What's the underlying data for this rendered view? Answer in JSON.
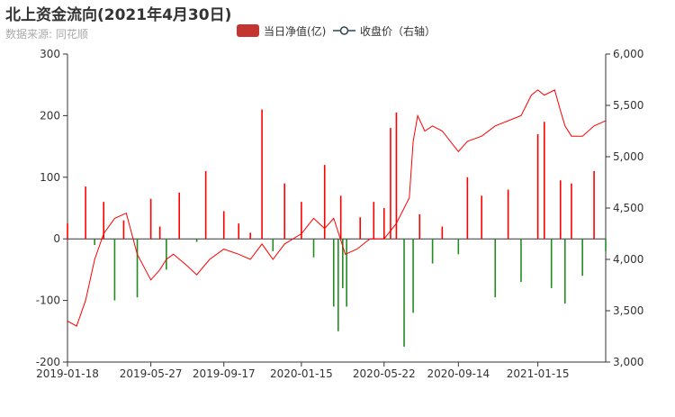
{
  "chart_data": {
    "type": "bar+line",
    "title": "北上资金流向(2021年4月30日)",
    "subtitle": "数据来源: 同花顺",
    "legend": [
      {
        "label": "当日净值(亿)",
        "color": "#c23531",
        "marker": "rect"
      },
      {
        "label": "收盘价（右轴）",
        "color": "#2f4554",
        "marker": "line-circle"
      }
    ],
    "legend_position": "top-center",
    "x_tick_labels": [
      "2019-01-18",
      "2019-05-27",
      "2019-09-17",
      "2020-01-15",
      "2020-05-22",
      "2020-09-14",
      "2021-01-15"
    ],
    "x_range": [
      "2019-01-18",
      "2021-04-30"
    ],
    "y_left": {
      "ticks": [
        -200,
        -100,
        0,
        100,
        200,
        300
      ],
      "min": -200,
      "max": 300
    },
    "y_right": {
      "ticks": [
        "3,000",
        "3,500",
        "4,000",
        "4,500",
        "5,000",
        "5,500",
        "6,000"
      ],
      "min": 3000,
      "max": 6000
    },
    "grid": false,
    "series": [
      {
        "name": "当日净值(亿)",
        "kind": "bar",
        "axis": "left",
        "positive_color": "#ff0000",
        "negative_color": "#228b22",
        "x": [
          "2019-01-18",
          "2019-02-15",
          "2019-03-01",
          "2019-03-15",
          "2019-04-01",
          "2019-04-15",
          "2019-05-06",
          "2019-05-27",
          "2019-06-10",
          "2019-06-20",
          "2019-07-10",
          "2019-08-06",
          "2019-08-20",
          "2019-09-17",
          "2019-10-10",
          "2019-10-28",
          "2019-11-15",
          "2019-12-02",
          "2019-12-20",
          "2020-01-15",
          "2020-02-03",
          "2020-02-20",
          "2020-03-05",
          "2020-03-12",
          "2020-03-16",
          "2020-03-19",
          "2020-03-25",
          "2020-04-15",
          "2020-05-06",
          "2020-05-22",
          "2020-06-01",
          "2020-06-10",
          "2020-06-22",
          "2020-07-06",
          "2020-07-16",
          "2020-08-05",
          "2020-08-20",
          "2020-09-14",
          "2020-09-28",
          "2020-10-20",
          "2020-11-10",
          "2020-11-30",
          "2020-12-20",
          "2021-01-15",
          "2021-01-25",
          "2021-02-05",
          "2021-02-19",
          "2021-02-26",
          "2021-03-08",
          "2021-03-25",
          "2021-04-12",
          "2021-04-30"
        ],
        "values": [
          25,
          85,
          -10,
          60,
          -100,
          30,
          -95,
          65,
          20,
          -50,
          75,
          -5,
          110,
          45,
          25,
          10,
          210,
          -20,
          90,
          60,
          -30,
          120,
          -110,
          -150,
          70,
          -80,
          -110,
          35,
          60,
          50,
          180,
          205,
          -175,
          -120,
          40,
          -40,
          20,
          -25,
          100,
          70,
          -95,
          80,
          -70,
          170,
          190,
          -80,
          95,
          -105,
          90,
          -60,
          110,
          -20
        ]
      },
      {
        "name": "收盘价（右轴）",
        "kind": "line",
        "axis": "right",
        "color": "#ff0000",
        "x": [
          "2019-01-18",
          "2019-02-01",
          "2019-02-15",
          "2019-03-01",
          "2019-03-15",
          "2019-04-01",
          "2019-04-19",
          "2019-05-06",
          "2019-05-27",
          "2019-06-10",
          "2019-06-20",
          "2019-07-01",
          "2019-07-20",
          "2019-08-06",
          "2019-08-26",
          "2019-09-17",
          "2019-10-10",
          "2019-10-28",
          "2019-11-15",
          "2019-12-02",
          "2019-12-20",
          "2020-01-15",
          "2020-02-03",
          "2020-02-20",
          "2020-03-05",
          "2020-03-23",
          "2020-04-10",
          "2020-04-30",
          "2020-05-22",
          "2020-06-10",
          "2020-06-30",
          "2020-07-06",
          "2020-07-13",
          "2020-07-24",
          "2020-08-05",
          "2020-08-20",
          "2020-09-14",
          "2020-09-28",
          "2020-10-20",
          "2020-11-10",
          "2020-11-30",
          "2020-12-20",
          "2021-01-05",
          "2021-01-15",
          "2021-01-25",
          "2021-02-10",
          "2021-02-19",
          "2021-02-26",
          "2021-03-08",
          "2021-03-25",
          "2021-04-12",
          "2021-04-30"
        ],
        "values": [
          3400,
          3350,
          3600,
          4000,
          4250,
          4400,
          4450,
          4050,
          3800,
          3900,
          4000,
          4050,
          3950,
          3850,
          4000,
          4100,
          4050,
          4000,
          4150,
          4000,
          4150,
          4250,
          4400,
          4300,
          4400,
          4050,
          4100,
          4200,
          4200,
          4350,
          4600,
          5150,
          5400,
          5250,
          5300,
          5250,
          5050,
          5150,
          5200,
          5300,
          5350,
          5400,
          5600,
          5650,
          5600,
          5650,
          5450,
          5300,
          5200,
          5200,
          5300,
          5350
        ]
      }
    ]
  }
}
